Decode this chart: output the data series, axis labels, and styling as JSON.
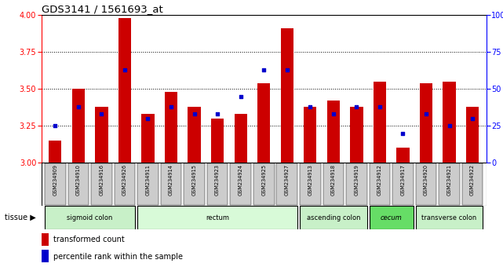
{
  "title": "GDS3141 / 1561693_at",
  "samples": [
    "GSM234909",
    "GSM234910",
    "GSM234916",
    "GSM234926",
    "GSM234911",
    "GSM234914",
    "GSM234915",
    "GSM234923",
    "GSM234924",
    "GSM234925",
    "GSM234927",
    "GSM234913",
    "GSM234918",
    "GSM234919",
    "GSM234912",
    "GSM234917",
    "GSM234920",
    "GSM234921",
    "GSM234922"
  ],
  "red_values": [
    3.15,
    3.5,
    3.38,
    3.98,
    3.33,
    3.48,
    3.38,
    3.3,
    3.33,
    3.54,
    3.91,
    3.38,
    3.42,
    3.38,
    3.55,
    3.1,
    3.54,
    3.55,
    3.38
  ],
  "blue_values": [
    25,
    38,
    33,
    63,
    30,
    38,
    33,
    33,
    45,
    63,
    63,
    38,
    33,
    38,
    38,
    20,
    33,
    25,
    30
  ],
  "tissue_groups": [
    {
      "label": "sigmoid colon",
      "start": 0,
      "end": 3,
      "color": "#c8f0c8"
    },
    {
      "label": "rectum",
      "start": 4,
      "end": 10,
      "color": "#d8fad8"
    },
    {
      "label": "ascending colon",
      "start": 11,
      "end": 13,
      "color": "#c8f0c8"
    },
    {
      "label": "cecum",
      "start": 14,
      "end": 15,
      "color": "#66dd66"
    },
    {
      "label": "transverse colon",
      "start": 16,
      "end": 18,
      "color": "#c8f0c8"
    }
  ],
  "ylim_left": [
    3.0,
    4.0
  ],
  "ylim_right": [
    0,
    100
  ],
  "yticks_left": [
    3.0,
    3.25,
    3.5,
    3.75,
    4.0
  ],
  "yticks_right": [
    0,
    25,
    50,
    75,
    100
  ],
  "ytick_labels_right": [
    "0",
    "25",
    "50",
    "75",
    "100%"
  ],
  "dotted_grid_values": [
    3.25,
    3.5,
    3.75
  ],
  "bar_color": "#cc0000",
  "dot_color": "#0000cc",
  "bar_bottom": 3.0,
  "bar_width": 0.55,
  "dot_size": 12,
  "background_sample": "#cccccc"
}
